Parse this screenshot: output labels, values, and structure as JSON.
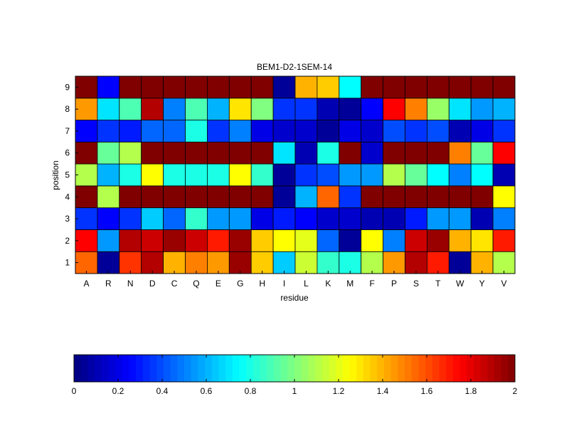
{
  "chart_data": {
    "type": "heatmap",
    "title": "BEM1-D2-1SEM-14",
    "xlabel": "residue",
    "ylabel": "position",
    "x_categories": [
      "A",
      "R",
      "N",
      "D",
      "C",
      "Q",
      "E",
      "G",
      "H",
      "I",
      "L",
      "K",
      "M",
      "F",
      "P",
      "S",
      "T",
      "W",
      "Y",
      "V"
    ],
    "y_categories": [
      "1",
      "2",
      "3",
      "4",
      "5",
      "6",
      "7",
      "8",
      "9"
    ],
    "values": [
      [
        1.55,
        0.05,
        1.65,
        1.9,
        1.4,
        1.5,
        1.45,
        1.95,
        1.35,
        0.65,
        1.15,
        0.85,
        0.8,
        1.1,
        1.45,
        1.9,
        1.7,
        0.05,
        1.4,
        1.1
      ],
      [
        1.75,
        0.55,
        1.9,
        1.85,
        1.95,
        1.85,
        1.7,
        1.95,
        1.35,
        1.25,
        1.2,
        0.45,
        0.05,
        1.25,
        0.5,
        1.85,
        1.95,
        1.4,
        1.3,
        1.7
      ],
      [
        0.35,
        0.25,
        0.35,
        0.65,
        0.45,
        0.85,
        0.55,
        0.55,
        0.2,
        0.3,
        0.25,
        0.15,
        0.15,
        0.1,
        0.1,
        0.3,
        0.55,
        0.55,
        0.1,
        0.5
      ],
      [
        2.0,
        1.1,
        2.0,
        2.0,
        2.0,
        2.0,
        2.0,
        2.0,
        2.0,
        0.05,
        0.6,
        1.55,
        0.35,
        2.0,
        2.0,
        2.0,
        2.0,
        2.0,
        2.0,
        1.25
      ],
      [
        1.1,
        0.6,
        0.8,
        1.25,
        0.8,
        0.8,
        0.8,
        1.25,
        0.85,
        0.05,
        0.35,
        0.4,
        0.55,
        0.55,
        1.1,
        0.95,
        0.75,
        0.5,
        0.75,
        0.1
      ],
      [
        2.0,
        0.95,
        1.1,
        2.0,
        2.0,
        2.0,
        2.0,
        2.0,
        2.0,
        0.7,
        0.1,
        0.8,
        2.0,
        0.15,
        2.0,
        2.0,
        2.0,
        1.5,
        0.95,
        1.75
      ],
      [
        0.25,
        0.35,
        0.3,
        0.45,
        0.45,
        0.8,
        0.35,
        0.5,
        0.2,
        0.15,
        0.15,
        0.05,
        0.2,
        0.15,
        0.4,
        0.35,
        0.4,
        0.1,
        0.2,
        0.35
      ],
      [
        1.45,
        0.7,
        0.9,
        1.9,
        0.5,
        0.9,
        0.6,
        1.3,
        1.0,
        0.35,
        0.35,
        0.1,
        0.05,
        0.25,
        1.75,
        1.5,
        1.05,
        0.7,
        0.55,
        0.6
      ],
      [
        2.0,
        0.25,
        2.0,
        2.0,
        2.0,
        2.0,
        2.0,
        2.0,
        2.0,
        0.05,
        1.4,
        1.35,
        0.75,
        2.0,
        2.0,
        2.0,
        2.0,
        2.0,
        2.0,
        2.0
      ]
    ],
    "colormap": "jet",
    "clim": [
      0,
      2
    ],
    "colorbar": {
      "placement": "bottom",
      "ticks": [
        0,
        0.2,
        0.4,
        0.6,
        0.8,
        1,
        1.2,
        1.4,
        1.6,
        1.8,
        2
      ],
      "tick_labels": [
        "0",
        "0.2",
        "0.4",
        "0.6",
        "0.8",
        "1",
        "1.2",
        "1.4",
        "1.6",
        "1.8",
        "2"
      ]
    },
    "grid": true
  }
}
